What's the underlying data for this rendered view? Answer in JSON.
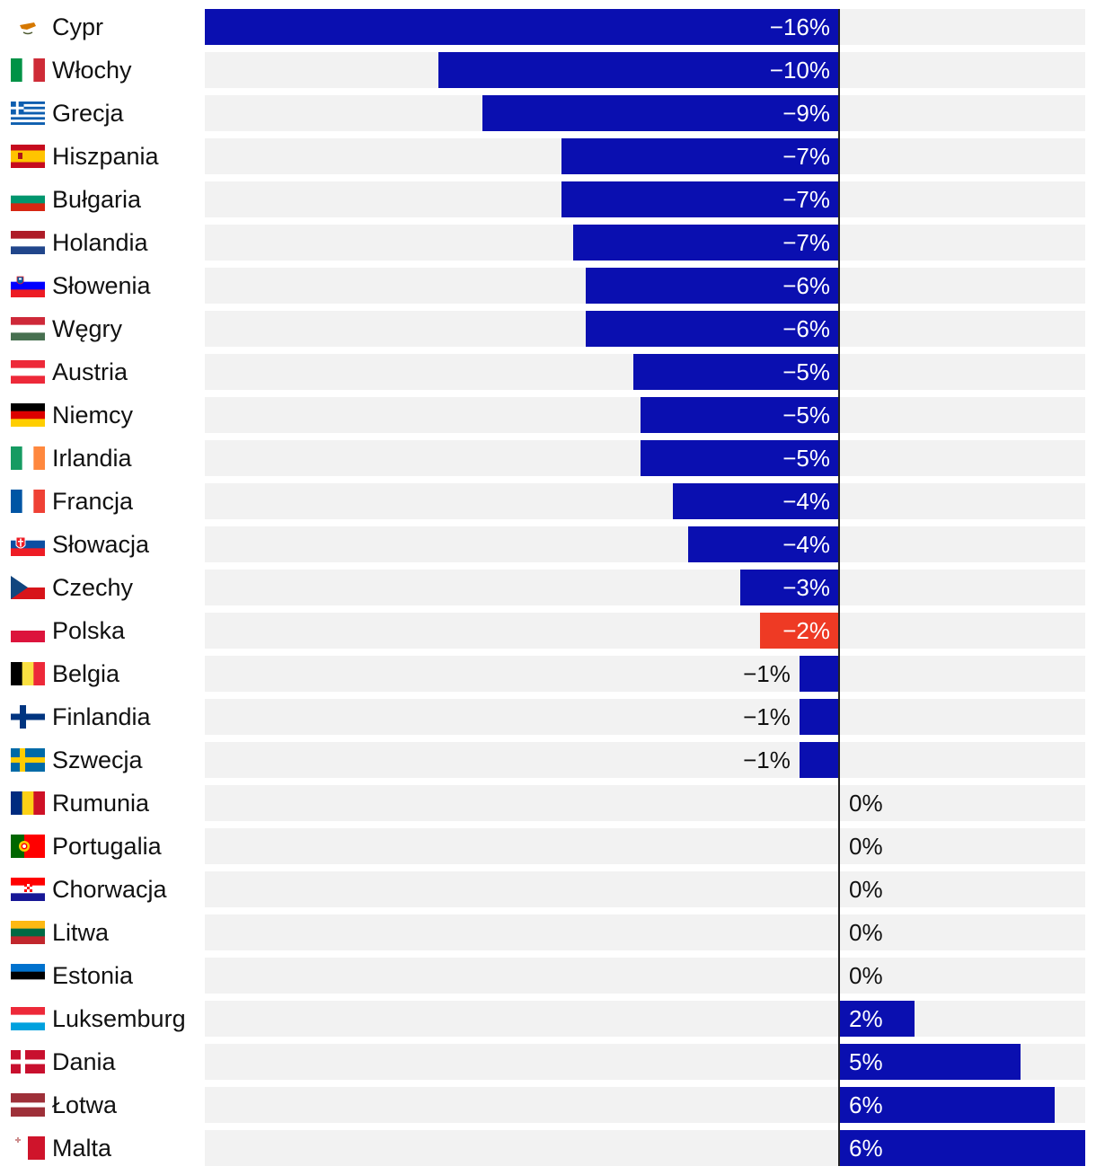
{
  "chart_data": {
    "type": "bar",
    "orientation": "horizontal",
    "title": "",
    "xlabel": "",
    "ylabel": "",
    "xlim": [
      -16,
      6.5
    ],
    "bar_color": "#0a0fb0",
    "highlight_color": "#ee3a24",
    "track_color": "#f2f2f2",
    "categories": [
      "Cypr",
      "Włochy",
      "Grecja",
      "Hiszpania",
      "Bułgaria",
      "Holandia",
      "Słowenia",
      "Węgry",
      "Austria",
      "Niemcy",
      "Irlandia",
      "Francja",
      "Słowacja",
      "Czechy",
      "Polska",
      "Belgia",
      "Finlandia",
      "Szwecja",
      "Rumunia",
      "Portugalia",
      "Chorwacja",
      "Litwa",
      "Estonia",
      "Luksemburg",
      "Dania",
      "Łotwa",
      "Malta"
    ],
    "values": [
      -16,
      -10.1,
      -9,
      -7,
      -7,
      -6.7,
      -6.4,
      -6.4,
      -5.2,
      -5,
      -5,
      -4.2,
      -3.8,
      -2.5,
      -2,
      -1,
      -1,
      -1,
      0,
      0,
      0,
      0,
      0,
      2,
      4.8,
      5.7,
      6.5
    ],
    "labels": [
      "−16%",
      "−10%",
      "−9%",
      "−7%",
      "−7%",
      "−7%",
      "−6%",
      "−6%",
      "−5%",
      "−5%",
      "−5%",
      "−4%",
      "−4%",
      "−3%",
      "−2%",
      "−1%",
      "−1%",
      "−1%",
      "0%",
      "0%",
      "0%",
      "0%",
      "0%",
      "2%",
      "5%",
      "6%",
      "6%"
    ],
    "highlight": [
      "Polska"
    ],
    "flags": [
      "cy",
      "it",
      "gr",
      "es",
      "bg",
      "nl",
      "si",
      "hu",
      "at",
      "de",
      "ie",
      "fr",
      "sk",
      "cz",
      "pl",
      "be",
      "fi",
      "se",
      "ro",
      "pt",
      "hr",
      "lt",
      "ee",
      "lu",
      "dk",
      "lv",
      "mt"
    ]
  }
}
